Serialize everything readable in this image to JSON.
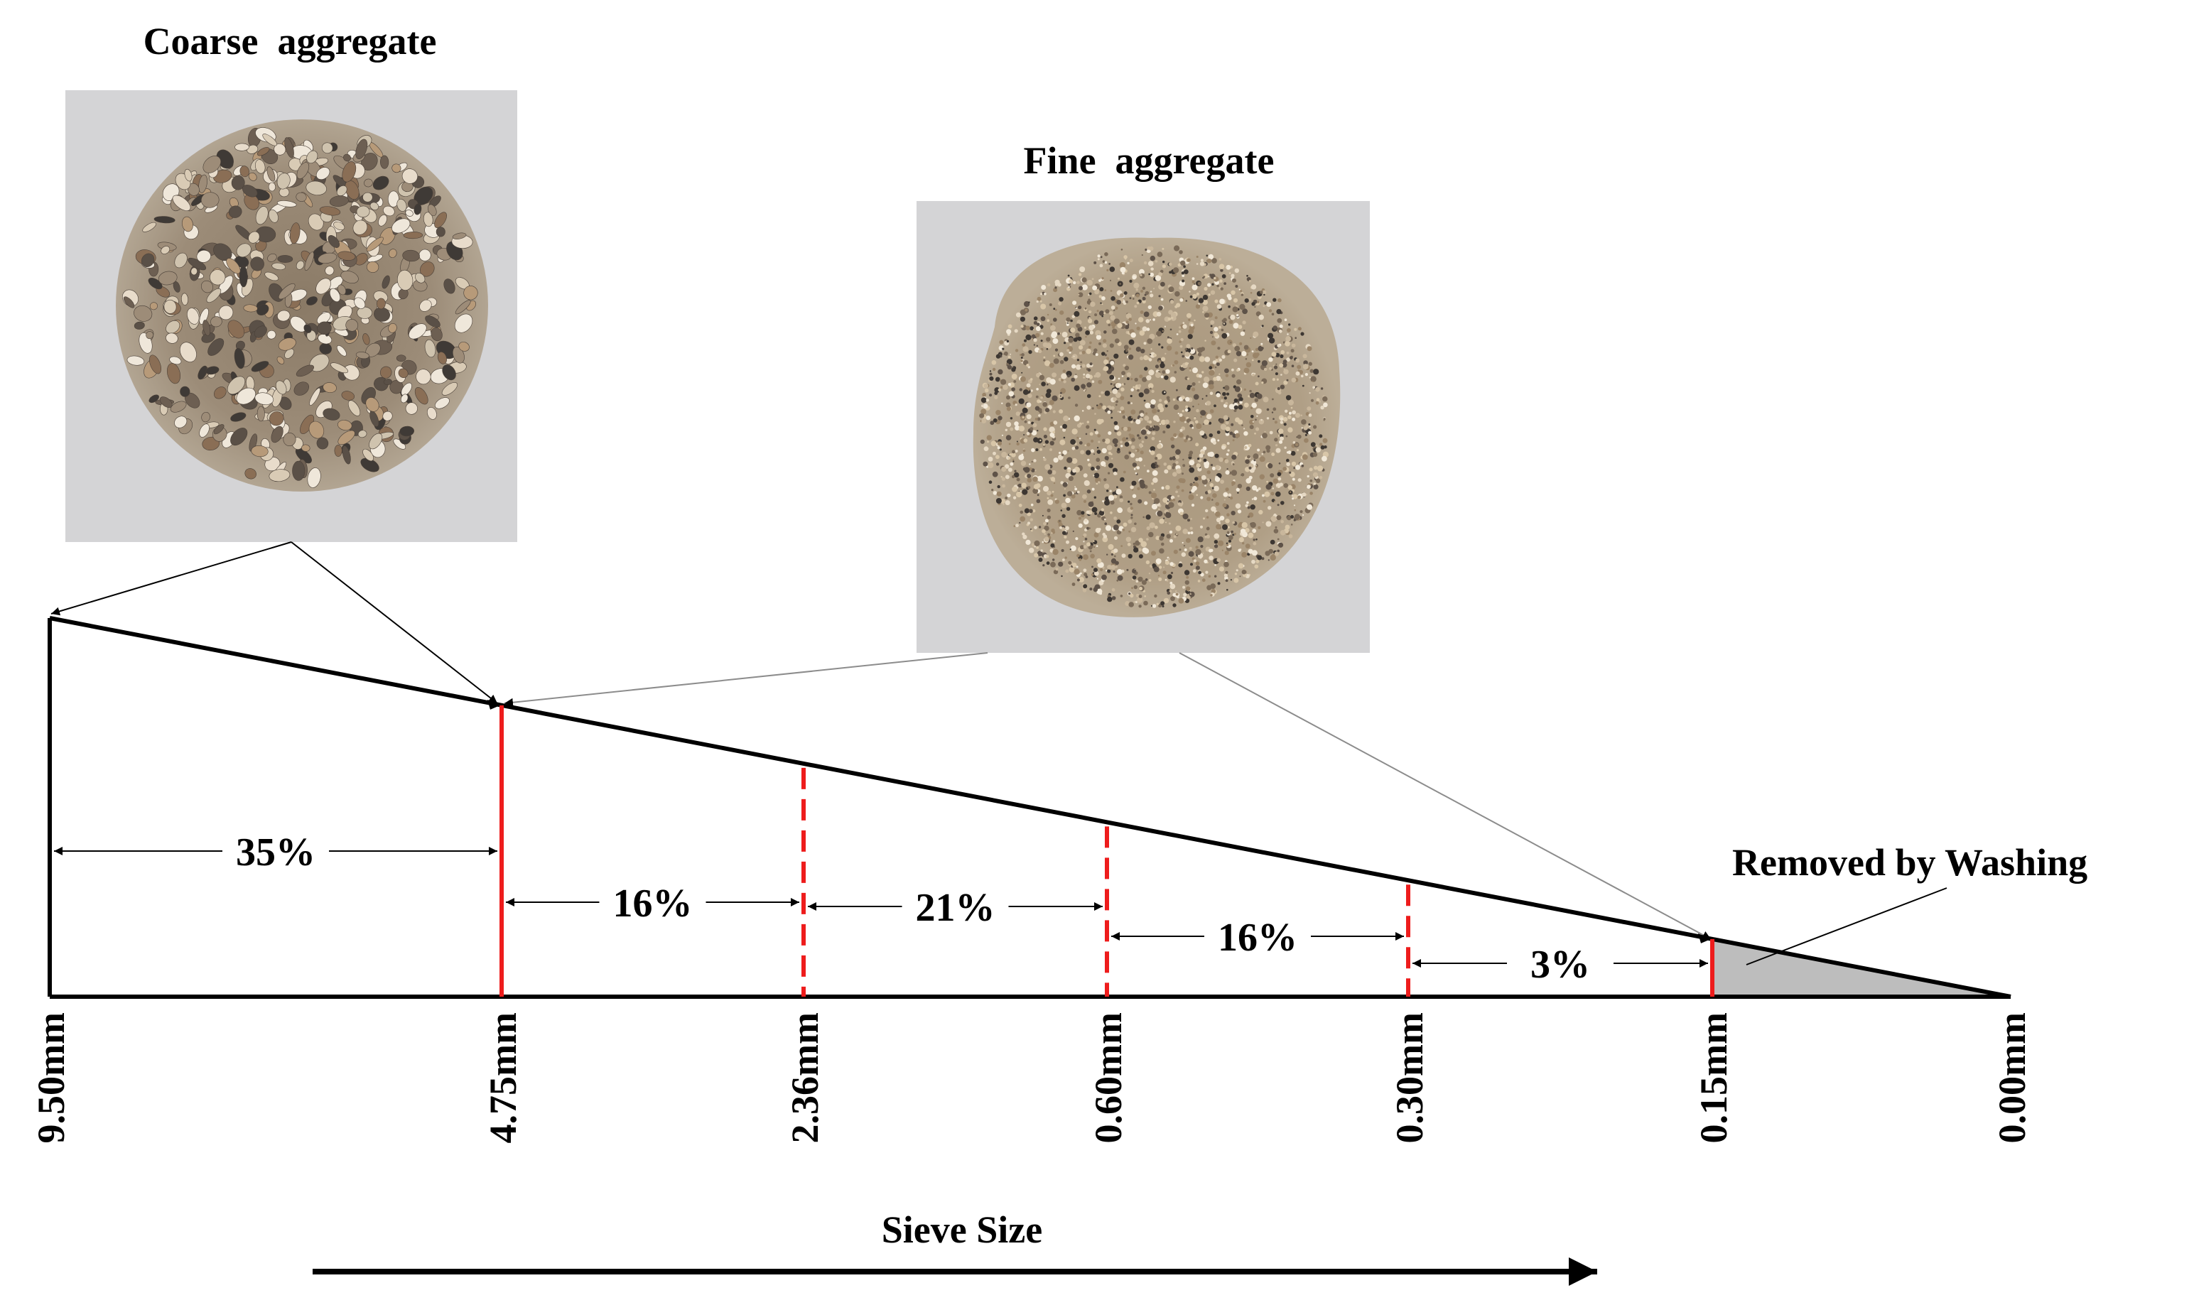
{
  "labels": {
    "coarse_title": "Coarse  aggregate",
    "fine_title": "Fine  aggregate",
    "removed": "Removed by Washing",
    "axis_title": "Sieve Size"
  },
  "sieves": [
    "9.50mm",
    "4.75mm",
    "2.36mm",
    "0.60mm",
    "0.30mm",
    "0.15mm",
    "0.00mm"
  ],
  "segments": [
    {
      "from": "9.50mm",
      "to": "4.75mm",
      "percent": "35%"
    },
    {
      "from": "4.75mm",
      "to": "2.36mm",
      "percent": "16%"
    },
    {
      "from": "2.36mm",
      "to": "0.60mm",
      "percent": "21%"
    },
    {
      "from": "0.60mm",
      "to": "0.30mm",
      "percent": "16%"
    },
    {
      "from": "0.30mm",
      "to": "0.15mm",
      "percent": "3%"
    }
  ],
  "colors": {
    "outline": "#000000",
    "sieve_line": "#ee1c1c",
    "washed_fill": "#bdbdbd",
    "photo_bg": "#d4d4d6"
  }
}
